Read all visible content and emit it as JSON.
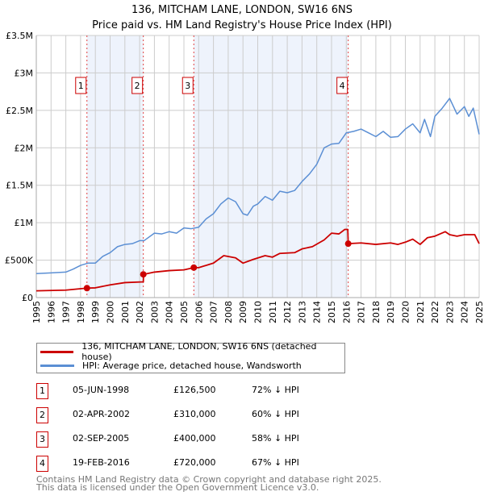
{
  "title": {
    "line1": "136, MITCHAM LANE, LONDON, SW16 6NS",
    "line2": "Price paid vs. HM Land Registry's House Price Index (HPI)"
  },
  "colors": {
    "property": "#cc0000",
    "hpi": "#5b8fd4",
    "shade": "#eef3fc"
  },
  "chart_data": {
    "type": "line",
    "title": "136, MITCHAM LANE, LONDON, SW16 6NS — Price paid vs. HM Land Registry's House Price Index (HPI)",
    "xlim": [
      1995,
      2025
    ],
    "ylim": [
      0,
      3500000
    ],
    "x_ticks": [
      "1995",
      "1996",
      "1997",
      "1998",
      "1999",
      "2000",
      "2001",
      "2002",
      "2003",
      "2004",
      "2005",
      "2006",
      "2007",
      "2008",
      "2009",
      "2010",
      "2011",
      "2012",
      "2013",
      "2014",
      "2015",
      "2016",
      "2017",
      "2018",
      "2019",
      "2020",
      "2021",
      "2022",
      "2023",
      "2024",
      "2025"
    ],
    "y_ticks": [
      {
        "v": 0,
        "label": "£0"
      },
      {
        "v": 500000,
        "label": "£500K"
      },
      {
        "v": 1000000,
        "label": "£1M"
      },
      {
        "v": 1500000,
        "label": "£1.5M"
      },
      {
        "v": 2000000,
        "label": "£2M"
      },
      {
        "v": 2500000,
        "label": "£2.5M"
      },
      {
        "v": 3000000,
        "label": "£3M"
      },
      {
        "v": 3500000,
        "label": "£3.5M"
      }
    ],
    "grid": true,
    "series": [
      {
        "name": "136, MITCHAM LANE, LONDON, SW16 6NS (detached house)",
        "color": "#cc0000",
        "points": [
          [
            1995,
            90000
          ],
          [
            1997,
            100000
          ],
          [
            1998.43,
            126500
          ],
          [
            1999,
            130000
          ],
          [
            2000,
            170000
          ],
          [
            2001,
            200000
          ],
          [
            2002.25,
            210000
          ],
          [
            2002.26,
            310000
          ],
          [
            2003,
            340000
          ],
          [
            2004,
            360000
          ],
          [
            2005,
            370000
          ],
          [
            2005.67,
            400000
          ],
          [
            2006,
            400000
          ],
          [
            2007,
            460000
          ],
          [
            2007.7,
            560000
          ],
          [
            2008.5,
            530000
          ],
          [
            2009,
            460000
          ],
          [
            2009.7,
            510000
          ],
          [
            2010.5,
            560000
          ],
          [
            2011,
            540000
          ],
          [
            2011.5,
            590000
          ],
          [
            2012.5,
            600000
          ],
          [
            2013,
            650000
          ],
          [
            2013.7,
            680000
          ],
          [
            2014.5,
            770000
          ],
          [
            2015,
            860000
          ],
          [
            2015.5,
            850000
          ],
          [
            2015.9,
            910000
          ],
          [
            2016.1,
            910000
          ],
          [
            2016.13,
            720000
          ],
          [
            2017,
            730000
          ],
          [
            2018,
            710000
          ],
          [
            2019,
            730000
          ],
          [
            2019.5,
            710000
          ],
          [
            2020,
            740000
          ],
          [
            2020.5,
            780000
          ],
          [
            2021,
            710000
          ],
          [
            2021.5,
            800000
          ],
          [
            2022,
            820000
          ],
          [
            2022.7,
            880000
          ],
          [
            2023,
            840000
          ],
          [
            2023.5,
            820000
          ],
          [
            2024,
            840000
          ],
          [
            2024.7,
            840000
          ],
          [
            2025,
            720000
          ]
        ]
      },
      {
        "name": "HPI: Average price, detached house, Wandsworth",
        "color": "#5b8fd4",
        "points": [
          [
            1995,
            320000
          ],
          [
            1996,
            330000
          ],
          [
            1997,
            340000
          ],
          [
            1997.5,
            380000
          ],
          [
            1998,
            430000
          ],
          [
            1998.5,
            460000
          ],
          [
            1999,
            460000
          ],
          [
            1999.5,
            550000
          ],
          [
            2000,
            600000
          ],
          [
            2000.5,
            680000
          ],
          [
            2001,
            710000
          ],
          [
            2001.5,
            720000
          ],
          [
            2002,
            760000
          ],
          [
            2002.3,
            760000
          ],
          [
            2003,
            860000
          ],
          [
            2003.5,
            850000
          ],
          [
            2004,
            880000
          ],
          [
            2004.5,
            860000
          ],
          [
            2005,
            930000
          ],
          [
            2005.5,
            920000
          ],
          [
            2006,
            940000
          ],
          [
            2006.5,
            1050000
          ],
          [
            2007,
            1120000
          ],
          [
            2007.5,
            1250000
          ],
          [
            2008,
            1330000
          ],
          [
            2008.5,
            1280000
          ],
          [
            2009,
            1120000
          ],
          [
            2009.3,
            1100000
          ],
          [
            2009.7,
            1220000
          ],
          [
            2010,
            1250000
          ],
          [
            2010.5,
            1350000
          ],
          [
            2011,
            1300000
          ],
          [
            2011.5,
            1420000
          ],
          [
            2012,
            1400000
          ],
          [
            2012.5,
            1430000
          ],
          [
            2013,
            1550000
          ],
          [
            2013.5,
            1650000
          ],
          [
            2014,
            1780000
          ],
          [
            2014.5,
            2000000
          ],
          [
            2015,
            2050000
          ],
          [
            2015.5,
            2060000
          ],
          [
            2016,
            2200000
          ],
          [
            2016.5,
            2220000
          ],
          [
            2017,
            2250000
          ],
          [
            2017.5,
            2200000
          ],
          [
            2018,
            2150000
          ],
          [
            2018.5,
            2220000
          ],
          [
            2019,
            2140000
          ],
          [
            2019.5,
            2150000
          ],
          [
            2020,
            2250000
          ],
          [
            2020.5,
            2320000
          ],
          [
            2021,
            2200000
          ],
          [
            2021.3,
            2380000
          ],
          [
            2021.7,
            2150000
          ],
          [
            2022,
            2420000
          ],
          [
            2022.5,
            2530000
          ],
          [
            2023,
            2660000
          ],
          [
            2023.5,
            2450000
          ],
          [
            2024,
            2550000
          ],
          [
            2024.3,
            2420000
          ],
          [
            2024.6,
            2530000
          ],
          [
            2025,
            2180000
          ]
        ]
      }
    ],
    "sales": [
      {
        "n": "1",
        "x": 1998.43,
        "price": 126500,
        "date": "05-JUN-1998",
        "price_label": "£126,500",
        "hpi_label": "72% ↓ HPI"
      },
      {
        "n": "2",
        "x": 2002.25,
        "price": 310000,
        "date": "02-APR-2002",
        "price_label": "£310,000",
        "hpi_label": "60% ↓ HPI"
      },
      {
        "n": "3",
        "x": 2005.67,
        "price": 400000,
        "date": "02-SEP-2005",
        "price_label": "£400,000",
        "hpi_label": "58% ↓ HPI"
      },
      {
        "n": "4",
        "x": 2016.13,
        "price": 720000,
        "date": "19-FEB-2016",
        "price_label": "£720,000",
        "hpi_label": "67% ↓ HPI"
      }
    ]
  },
  "legend": {
    "property": "136, MITCHAM LANE, LONDON, SW16 6NS (detached house)",
    "hpi": "HPI: Average price, detached house, Wandsworth"
  },
  "footer": {
    "line1": "Contains HM Land Registry data © Crown copyright and database right 2025.",
    "line2": "This data is licensed under the Open Government Licence v3.0."
  }
}
